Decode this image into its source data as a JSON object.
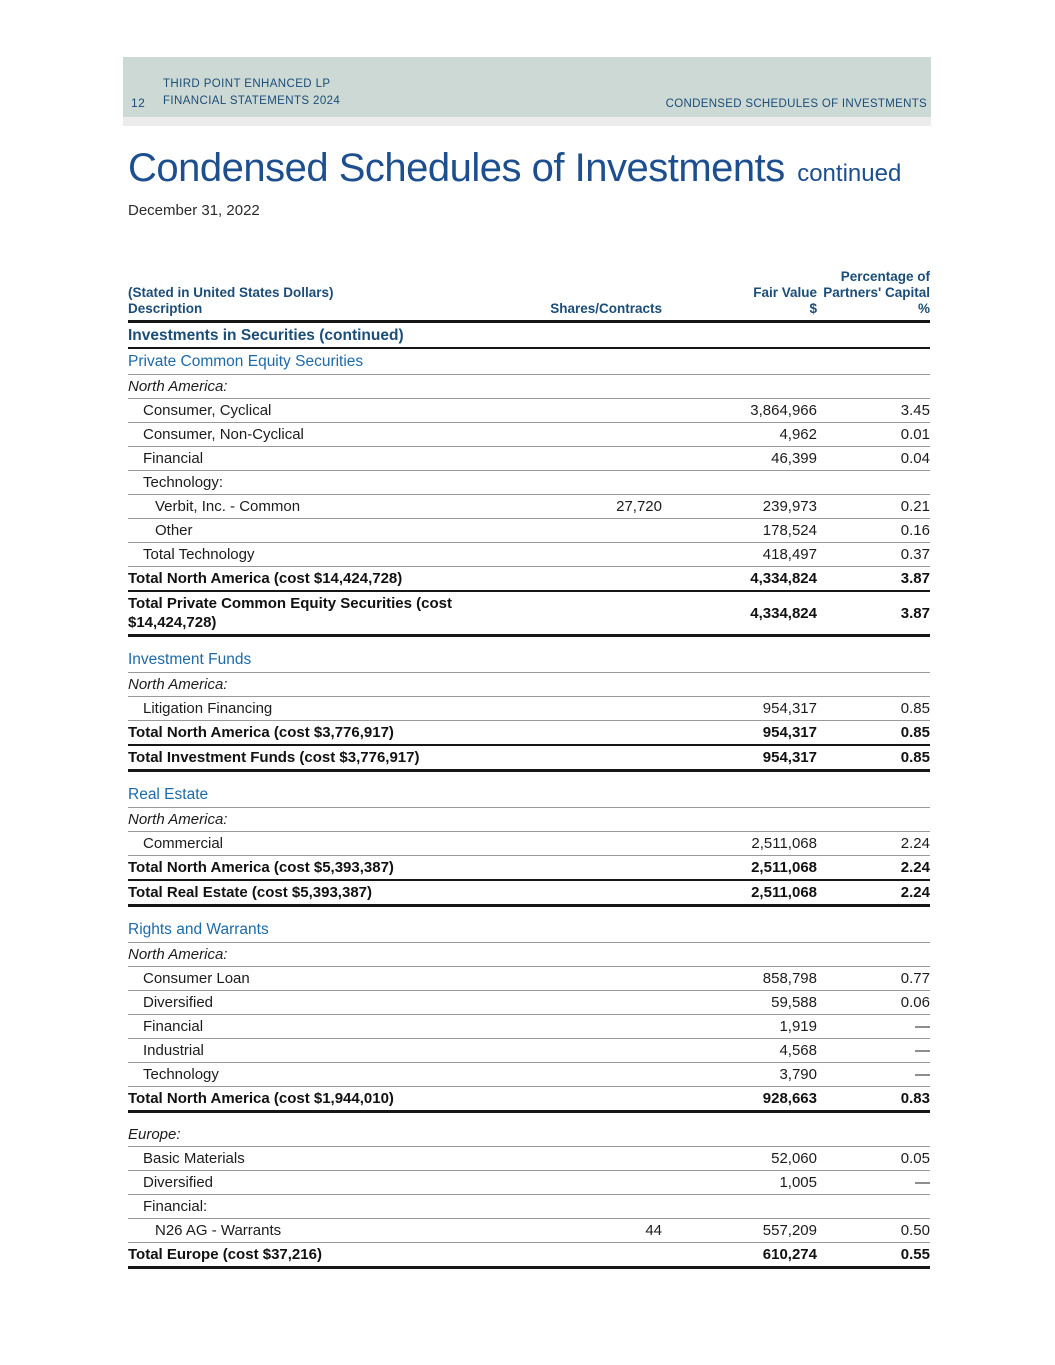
{
  "colors": {
    "band-bg": "#cdd9d4",
    "navy": "#1b4d78",
    "title-blue": "#1d4f8f",
    "section-blue": "#1c6aa8",
    "line-gray": "#999999",
    "line-dark": "#161616"
  },
  "band": {
    "page_number": "12",
    "line1": "THIRD POINT ENHANCED LP",
    "line2": "FINANCIAL STATEMENTS 2024",
    "right": "CONDENSED SCHEDULES OF INVESTMENTS"
  },
  "title": {
    "main": "Condensed Schedules of Investments",
    "suffix": "continued",
    "date": "December 31, 2022"
  },
  "table": {
    "header": {
      "col1_line1": "(Stated in United States Dollars)",
      "col1_line2": "Description",
      "col2": "Shares/Contracts",
      "col3_line1": "Fair Value",
      "col3_line2": "$",
      "col4_line1": "Percentage of",
      "col4_line2": "Partners' Capital",
      "col4_line3": "%"
    },
    "rows": [
      {
        "type": "section-title",
        "label": "Investments in Securities (continued)",
        "shares": "",
        "fair": "",
        "pct": ""
      },
      {
        "type": "section",
        "label": "Private Common Equity Securities",
        "shares": "",
        "fair": "",
        "pct": ""
      },
      {
        "type": "region",
        "label": "North America:",
        "shares": "",
        "fair": "",
        "pct": ""
      },
      {
        "type": "item",
        "label": "Consumer, Cyclical",
        "shares": "",
        "fair": "3,864,966",
        "pct": "3.45"
      },
      {
        "type": "item",
        "label": "Consumer, Non-Cyclical",
        "shares": "",
        "fair": "4,962",
        "pct": "0.01"
      },
      {
        "type": "item",
        "label": "Financial",
        "shares": "",
        "fair": "46,399",
        "pct": "0.04"
      },
      {
        "type": "item",
        "label": "Technology:",
        "shares": "",
        "fair": "",
        "pct": ""
      },
      {
        "type": "subitem",
        "label": "Verbit, Inc. - Common",
        "shares": "27,720",
        "fair": "239,973",
        "pct": "0.21"
      },
      {
        "type": "subitem",
        "label": "Other",
        "shares": "",
        "fair": "178,524",
        "pct": "0.16"
      },
      {
        "type": "item",
        "label": "Total Technology",
        "shares": "",
        "fair": "418,497",
        "pct": "0.37"
      },
      {
        "type": "total",
        "label": "Total North America (cost $14,424,728)",
        "shares": "",
        "fair": "4,334,824",
        "pct": "3.87"
      },
      {
        "type": "total-final",
        "label": "Total Private Common Equity Securities (cost $14,424,728)",
        "shares": "",
        "fair": "4,334,824",
        "pct": "3.87"
      },
      {
        "type": "spacer",
        "label": "",
        "shares": "",
        "fair": "",
        "pct": ""
      },
      {
        "type": "section",
        "label": "Investment Funds",
        "shares": "",
        "fair": "",
        "pct": ""
      },
      {
        "type": "region",
        "label": "North America:",
        "shares": "",
        "fair": "",
        "pct": ""
      },
      {
        "type": "item",
        "label": "Litigation Financing",
        "shares": "",
        "fair": "954,317",
        "pct": "0.85"
      },
      {
        "type": "total",
        "label": "Total North America (cost $3,776,917)",
        "shares": "",
        "fair": "954,317",
        "pct": "0.85"
      },
      {
        "type": "total-final",
        "label": "Total Investment Funds (cost $3,776,917)",
        "shares": "",
        "fair": "954,317",
        "pct": "0.85"
      },
      {
        "type": "spacer",
        "label": "",
        "shares": "",
        "fair": "",
        "pct": ""
      },
      {
        "type": "section",
        "label": "Real Estate",
        "shares": "",
        "fair": "",
        "pct": ""
      },
      {
        "type": "region",
        "label": "North America:",
        "shares": "",
        "fair": "",
        "pct": ""
      },
      {
        "type": "item",
        "label": "Commercial",
        "shares": "",
        "fair": "2,511,068",
        "pct": "2.24"
      },
      {
        "type": "total",
        "label": "Total North America (cost $5,393,387)",
        "shares": "",
        "fair": "2,511,068",
        "pct": "2.24"
      },
      {
        "type": "total-final",
        "label": "Total Real Estate (cost $5,393,387)",
        "shares": "",
        "fair": "2,511,068",
        "pct": "2.24"
      },
      {
        "type": "spacer",
        "label": "",
        "shares": "",
        "fair": "",
        "pct": ""
      },
      {
        "type": "section",
        "label": "Rights and Warrants",
        "shares": "",
        "fair": "",
        "pct": ""
      },
      {
        "type": "region",
        "label": "North America:",
        "shares": "",
        "fair": "",
        "pct": ""
      },
      {
        "type": "item",
        "label": "Consumer Loan",
        "shares": "",
        "fair": "858,798",
        "pct": "0.77"
      },
      {
        "type": "item",
        "label": "Diversified",
        "shares": "",
        "fair": "59,588",
        "pct": "0.06"
      },
      {
        "type": "item",
        "label": "Financial",
        "shares": "",
        "fair": "1,919",
        "pct": "—"
      },
      {
        "type": "item",
        "label": "Industrial",
        "shares": "",
        "fair": "4,568",
        "pct": "—"
      },
      {
        "type": "item",
        "label": "Technology",
        "shares": "",
        "fair": "3,790",
        "pct": "—"
      },
      {
        "type": "total-final",
        "label": "Total North America (cost $1,944,010)",
        "shares": "",
        "fair": "928,663",
        "pct": "0.83"
      },
      {
        "type": "spacer",
        "label": "",
        "shares": "",
        "fair": "",
        "pct": ""
      },
      {
        "type": "region",
        "label": "Europe:",
        "shares": "",
        "fair": "",
        "pct": ""
      },
      {
        "type": "item",
        "label": "Basic Materials",
        "shares": "",
        "fair": "52,060",
        "pct": "0.05"
      },
      {
        "type": "item",
        "label": "Diversified",
        "shares": "",
        "fair": "1,005",
        "pct": "—"
      },
      {
        "type": "item",
        "label": "Financial:",
        "shares": "",
        "fair": "",
        "pct": ""
      },
      {
        "type": "subitem",
        "label": "N26 AG - Warrants",
        "shares": "44",
        "fair": "557,209",
        "pct": "0.50"
      },
      {
        "type": "total-final",
        "label": "Total Europe (cost $37,216)",
        "shares": "",
        "fair": "610,274",
        "pct": "0.55"
      }
    ]
  }
}
